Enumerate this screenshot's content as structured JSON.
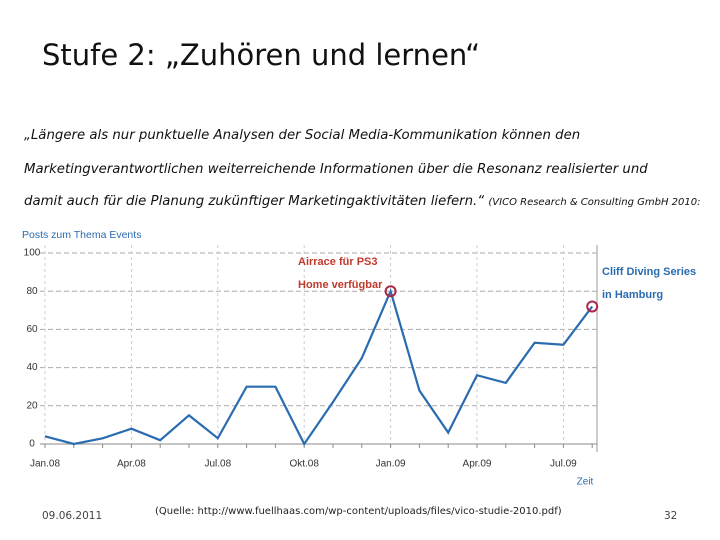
{
  "slide": {
    "title": "Stufe 2: „Zuhören und lernen“",
    "quote_lines": [
      "„Längere als nur punktuelle Analysen der Social Media-Kommunikation können den",
      "Marketingverantwortlichen weiterreichende Informationen über die Resonanz realisierter und",
      "damit auch für die Planung zukünftiger Marketingaktivitäten liefern.“"
    ],
    "citation": "(VICO Research & Consulting GmbH 2010:",
    "date": "09.06.2011",
    "source": "(Quelle: http://www.fuellhaas.com/wp-content/uploads/files/vico-studie-2010.pdf)",
    "page_number": "32"
  },
  "chart_data": {
    "type": "line",
    "y_label": "Posts zum Thema Events",
    "x_label": "Zeit",
    "categories": [
      "Jan.08",
      null,
      null,
      "Apr.08",
      null,
      null,
      "Jul.08",
      null,
      null,
      "Okt.08",
      null,
      null,
      "Jan.09",
      null,
      null,
      "Apr.09",
      null,
      null,
      "Jul.09",
      null
    ],
    "values": [
      4,
      0,
      3,
      8,
      2,
      15,
      3,
      30,
      30,
      0,
      22,
      45,
      80,
      28,
      6,
      36,
      32,
      53,
      52,
      72
    ],
    "color": "#2a6cb0",
    "ylim": [
      0,
      100
    ],
    "yticks": [
      0,
      20,
      40,
      60,
      80,
      100
    ],
    "grid": true,
    "annotations": [
      {
        "lines": [
          "Airrace für PS3",
          "Home verfügbar"
        ],
        "color": "#c0392b"
      },
      {
        "lines": [
          "Cliff Diving Series",
          "in Hamburg"
        ],
        "color": "#2a6cb0"
      }
    ]
  }
}
